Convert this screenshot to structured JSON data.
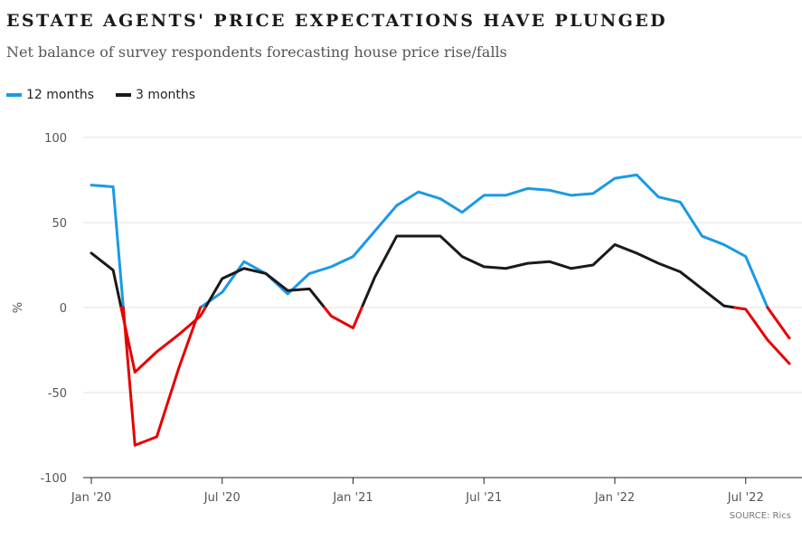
{
  "colors": {
    "series_12m": "#1a9ae6",
    "series_3m": "#1a1a1a",
    "negative": "#e60000",
    "grid": "#e3e3e3",
    "axis": "#222222"
  },
  "chart_data": {
    "type": "line",
    "title": "ESTATE AGENTS' PRICE EXPECTATIONS HAVE PLUNGED",
    "subtitle": "Net balance of survey respondents forecasting house price rise/falls",
    "ylabel": "%",
    "xlabel": "",
    "ylim": [
      -100,
      100
    ],
    "yticks": [
      "100",
      "50",
      "0",
      "-50",
      "-100"
    ],
    "ytick_values": [
      100,
      50,
      0,
      -50,
      -100
    ],
    "xticks": [
      "Jan '20",
      "Jul '20",
      "Jan '21",
      "Jul '21",
      "Jan '22",
      "Jul '22"
    ],
    "xtick_months": [
      "2020-01",
      "2020-07",
      "2021-01",
      "2021-07",
      "2022-01",
      "2022-07"
    ],
    "grid": true,
    "legend_position": "top-left",
    "negative_color_note": "values below zero drawn in red",
    "x": [
      "2020-01",
      "2020-02",
      "2020-03",
      "2020-04",
      "2020-05",
      "2020-06",
      "2020-07",
      "2020-08",
      "2020-09",
      "2020-10",
      "2020-11",
      "2020-12",
      "2021-01",
      "2021-02",
      "2021-03",
      "2021-04",
      "2021-05",
      "2021-06",
      "2021-07",
      "2021-08",
      "2021-09",
      "2021-10",
      "2021-11",
      "2021-12",
      "2022-01",
      "2022-02",
      "2022-03",
      "2022-04",
      "2022-05",
      "2022-06",
      "2022-07",
      "2022-08",
      "2022-09"
    ],
    "series": [
      {
        "name": "12 months",
        "values": [
          72,
          71,
          -81,
          -76,
          -36,
          0,
          9,
          27,
          20,
          8,
          20,
          24,
          30,
          45,
          60,
          68,
          64,
          56,
          66,
          66,
          70,
          69,
          66,
          67,
          76,
          78,
          65,
          62,
          42,
          37,
          30,
          0,
          -18
        ]
      },
      {
        "name": "3 months",
        "values": [
          32,
          22,
          -38,
          -26,
          -16,
          -5,
          17,
          23,
          20,
          10,
          11,
          -5,
          -12,
          18,
          42,
          42,
          42,
          30,
          24,
          23,
          26,
          27,
          23,
          25,
          37,
          32,
          26,
          21,
          11,
          1,
          -1,
          -19,
          -33
        ]
      }
    ],
    "source": "SOURCE: Rics"
  }
}
